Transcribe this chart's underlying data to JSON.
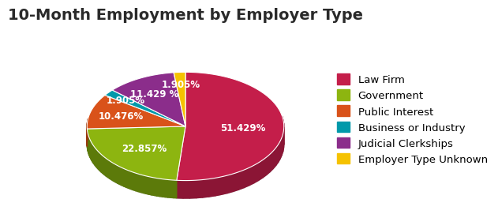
{
  "title": "10-Month Employment by Employer Type",
  "slices": [
    {
      "label": "Law Firm",
      "pct": 51.429,
      "color": "#c41e4a",
      "dark_color": "#8b1535"
    },
    {
      "label": "Government",
      "pct": 22.857,
      "color": "#8db510",
      "dark_color": "#5c7a0a"
    },
    {
      "label": "Public Interest",
      "pct": 10.476,
      "color": "#d9521a",
      "dark_color": "#9a3a10"
    },
    {
      "label": "Business or Industry",
      "pct": 1.905,
      "color": "#0099aa",
      "dark_color": "#006677"
    },
    {
      "label": "Judicial Clerkships",
      "pct": 11.429,
      "color": "#8b2d8b",
      "dark_color": "#5c1a5c"
    },
    {
      "label": "Employer Type Unknown",
      "pct": 1.905,
      "color": "#f5c200",
      "dark_color": "#b38900"
    }
  ],
  "label_texts": [
    "51.429%",
    "22.857%",
    "10.476%",
    "1.905%",
    "11.429 %",
    "1.905%"
  ],
  "background_color": "#ffffff",
  "title_fontsize": 14,
  "label_fontsize": 8.5,
  "legend_fontsize": 9.5
}
